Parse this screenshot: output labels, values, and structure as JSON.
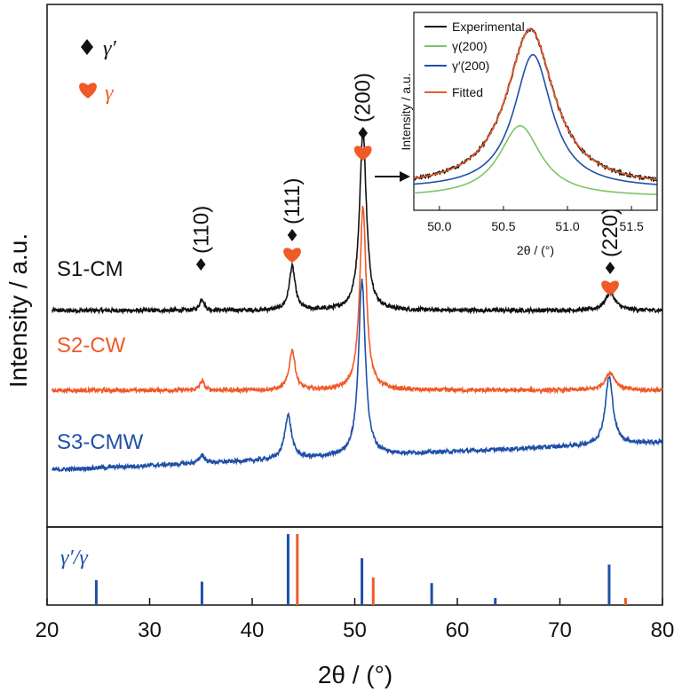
{
  "chart_data": [
    {
      "type": "line",
      "xlabel": "2θ / (°)",
      "ylabel": "Intensity / a.u.",
      "xlim": [
        20,
        80
      ],
      "xticks": [
        20,
        30,
        40,
        50,
        60,
        70,
        80
      ],
      "yticks_shown": false,
      "grid": false,
      "legend": {
        "placement": "top-left",
        "entries": [
          {
            "label": "γ′",
            "marker": "diamond",
            "color": "#111111"
          },
          {
            "label": "γ",
            "marker": "heart",
            "color": "#f05a28"
          }
        ]
      },
      "series": [
        {
          "name": "S1-CM",
          "color": "#111111",
          "offset": 2.0,
          "baseline": 0.0,
          "noise": 0.05,
          "peaks": [
            {
              "x": 35.1,
              "h": 0.15,
              "w": 0.25
            },
            {
              "x": 43.9,
              "h": 0.55,
              "w": 0.35
            },
            {
              "x": 50.8,
              "h": 2.25,
              "w": 0.4
            },
            {
              "x": 74.9,
              "h": 0.22,
              "w": 0.6
            }
          ]
        },
        {
          "name": "S2-CW",
          "color": "#f05a28",
          "offset": 1.0,
          "baseline": 0.0,
          "noise": 0.05,
          "peaks": [
            {
              "x": 35.1,
              "h": 0.12,
              "w": 0.25
            },
            {
              "x": 43.9,
              "h": 0.5,
              "w": 0.35
            },
            {
              "x": 50.8,
              "h": 2.3,
              "w": 0.38
            },
            {
              "x": 74.9,
              "h": 0.22,
              "w": 0.6
            }
          ]
        },
        {
          "name": "S3-CMW",
          "color": "#1f4fa8",
          "offset": 0.0,
          "baseline": 0.0,
          "slope": 0.35,
          "noise": 0.05,
          "peaks": [
            {
              "x": 35.1,
              "h": 0.1,
              "w": 0.3
            },
            {
              "x": 43.5,
              "h": 0.55,
              "w": 0.4
            },
            {
              "x": 50.7,
              "h": 2.2,
              "w": 0.4
            },
            {
              "x": 74.8,
              "h": 0.85,
              "w": 0.45
            }
          ]
        }
      ],
      "peak_annotations": [
        {
          "hkl": "(110)",
          "x": 35.0,
          "markers": [
            "diamond"
          ]
        },
        {
          "hkl": "(111)",
          "x": 43.9,
          "markers": [
            "diamond",
            "heart"
          ]
        },
        {
          "hkl": "(200)",
          "x": 50.8,
          "markers": [
            "diamond",
            "heart"
          ]
        },
        {
          "hkl": "(220)",
          "x": 74.9,
          "markers": [
            "diamond",
            "heart"
          ]
        }
      ]
    },
    {
      "type": "bar",
      "label": "γ′/γ",
      "xlim": [
        20,
        80
      ],
      "series": [
        {
          "name": "γ′",
          "color": "#1f4fa8",
          "x": [
            24.8,
            35.1,
            43.5,
            50.7,
            57.5,
            63.7,
            74.8
          ],
          "values": [
            0.35,
            0.33,
            1.0,
            0.66,
            0.31,
            0.1,
            0.57
          ]
        },
        {
          "name": "γ",
          "color": "#f05a28",
          "x": [
            44.4,
            51.8,
            76.4
          ],
          "values": [
            1.0,
            0.39,
            0.1
          ]
        }
      ]
    },
    {
      "type": "line",
      "inset": true,
      "xlabel": "2θ / (°)",
      "ylabel": "Intensity / a.u.",
      "xlim": [
        49.8,
        51.7
      ],
      "xticks": [
        50.0,
        50.5,
        51.0,
        51.5
      ],
      "series": [
        {
          "name": "Experimental",
          "color": "#111111",
          "center": 50.71,
          "height": 1.0,
          "width": 0.25,
          "base": 0.1,
          "noise": 0.018
        },
        {
          "name": "γ(200)",
          "color": "#7cc464",
          "center": 50.63,
          "height": 0.45,
          "width": 0.22,
          "base": 0.04,
          "noise": 0
        },
        {
          "name": "γ′(200)",
          "color": "#1f4fa8",
          "center": 50.73,
          "height": 0.85,
          "width": 0.2,
          "base": 0.09,
          "noise": 0
        },
        {
          "name": "Fitted",
          "color": "#f05a28",
          "center": 50.71,
          "height": 1.0,
          "width": 0.25,
          "base": 0.1,
          "noise": 0
        }
      ]
    }
  ]
}
